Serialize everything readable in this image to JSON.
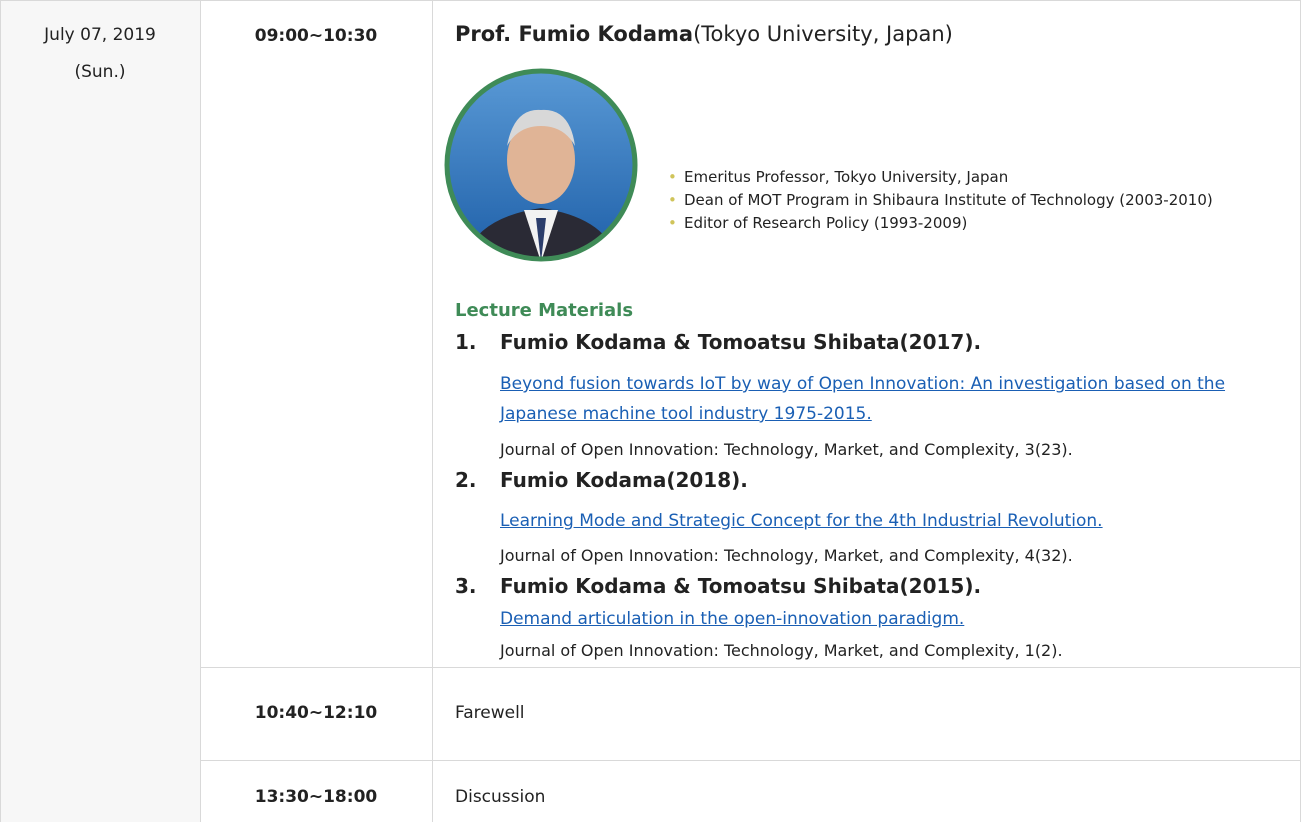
{
  "table": {
    "rows": [
      {
        "date": "July 07, 2019",
        "day": "(Sun.)",
        "time": "09:00~10:30",
        "speaker": {
          "name": "Prof. Fumio Kodama",
          "affiliation": "(Tokyo University, Japan)",
          "bio": [
            "Emeritus Professor, Tokyo University, Japan",
            "Dean of MOT Program in Shibaura Institute of Technology (2003-2010)",
            "Editor of Research Policy (1993-2009)"
          ]
        },
        "materials": {
          "heading": "Lecture Materials",
          "items": [
            {
              "number": "1.",
              "authors": "Fumio Kodama & Tomoatsu Shibata(2017).",
              "link": "Beyond fusion towards IoT by way of Open Innovation: An investigation based on the Japanese machine tool industry 1975-2015.",
              "source": "Journal of Open Innovation: Technology, Market, and Complexity, 3(23)."
            },
            {
              "number": "2.",
              "authors": "Fumio Kodama(2018).",
              "link": "Learning Mode and Strategic Concept for the 4th Industrial Revolution.",
              "source": "Journal of Open Innovation: Technology, Market, and Complexity, 4(32)."
            },
            {
              "number": "3.",
              "authors": "Fumio Kodama & Tomoatsu Shibata(2015).",
              "link": "Demand articulation in the open-innovation paradigm.",
              "source": "Journal of Open Innovation: Technology, Market, and Complexity, 1(2)."
            }
          ]
        }
      },
      {
        "time": "10:40~12:10",
        "event": "Farewell"
      },
      {
        "time": "13:30~18:00",
        "event": "Discussion"
      }
    ]
  }
}
